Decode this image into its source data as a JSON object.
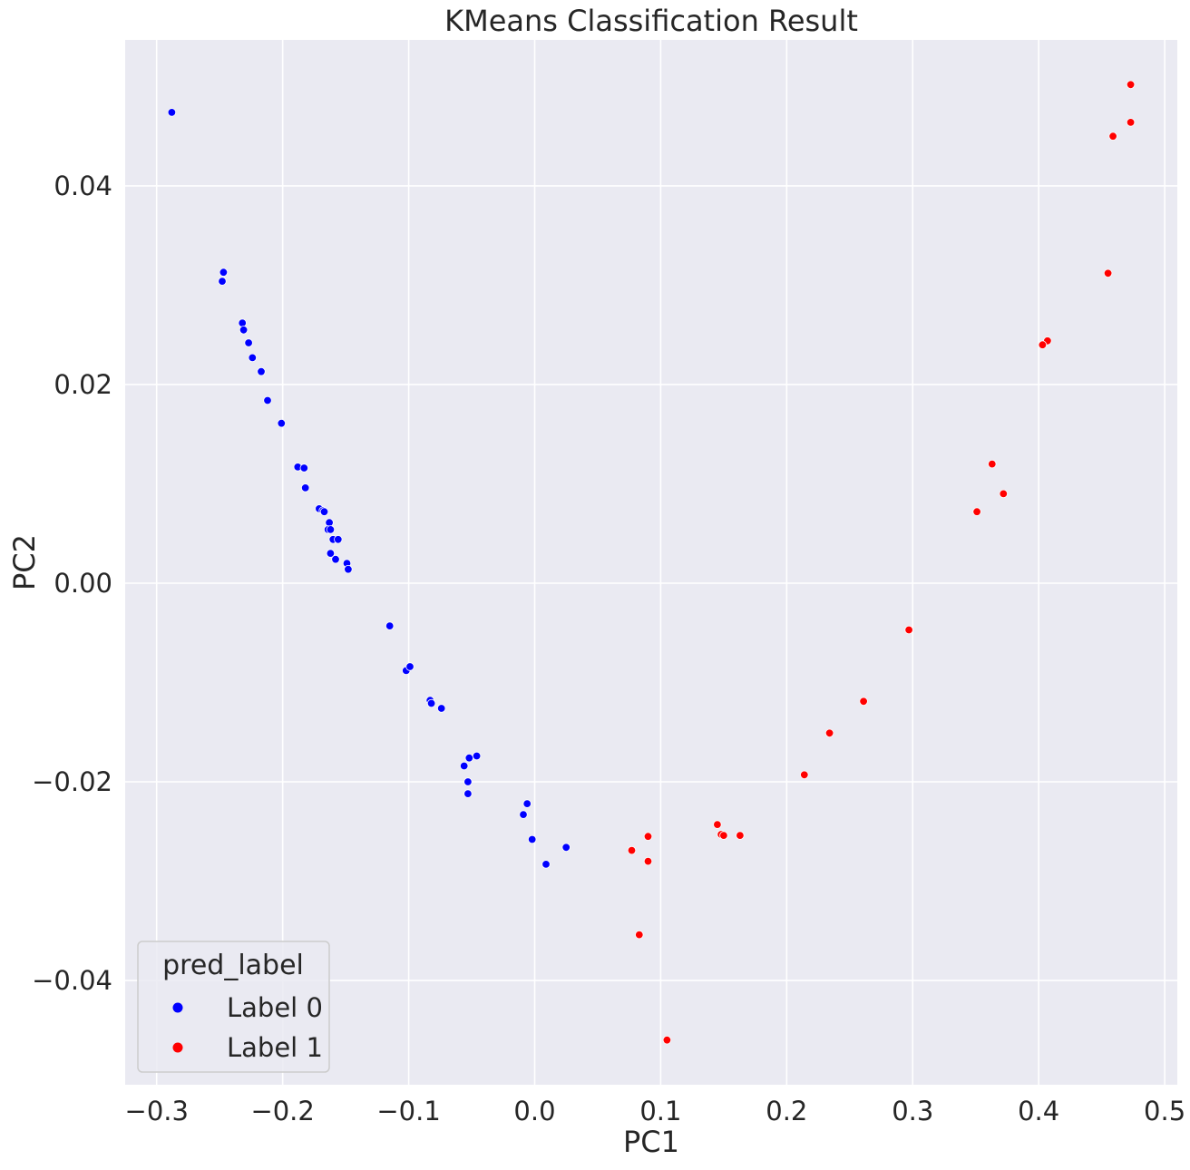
{
  "chart_data": {
    "type": "scatter",
    "title": "KMeans Classification Result",
    "xlabel": "PC1",
    "ylabel": "PC2",
    "xlim": [
      -0.325,
      0.51
    ],
    "ylim": [
      -0.0505,
      0.0547
    ],
    "x_ticks": [
      -0.3,
      -0.2,
      -0.1,
      0.0,
      0.1,
      0.2,
      0.3,
      0.4,
      0.5
    ],
    "x_tick_labels": [
      "−0.3",
      "−0.2",
      "−0.1",
      "0.0",
      "0.1",
      "0.2",
      "0.3",
      "0.4",
      "0.5"
    ],
    "y_ticks": [
      -0.04,
      -0.02,
      0.0,
      0.02,
      0.04
    ],
    "y_tick_labels": [
      "−0.04",
      "−0.02",
      "0.00",
      "0.02",
      "0.04"
    ],
    "grid": true,
    "background": "#eaeaf2",
    "grid_color": "#ffffff",
    "legend": {
      "title": "pred_label",
      "placement": "lower-left",
      "entries": [
        "Label 0",
        "Label 1"
      ]
    },
    "series": [
      {
        "name": "Label 0",
        "color": "#0000ff",
        "points": [
          [
            -0.288,
            0.0474
          ],
          [
            -0.247,
            0.0313
          ],
          [
            -0.248,
            0.0304
          ],
          [
            -0.232,
            0.0262
          ],
          [
            -0.231,
            0.0255
          ],
          [
            -0.227,
            0.0242
          ],
          [
            -0.224,
            0.0227
          ],
          [
            -0.217,
            0.0213
          ],
          [
            -0.212,
            0.0184
          ],
          [
            -0.201,
            0.0161
          ],
          [
            -0.188,
            0.0117
          ],
          [
            -0.183,
            0.0116
          ],
          [
            -0.182,
            0.0096
          ],
          [
            -0.171,
            0.0075
          ],
          [
            -0.168,
            0.0073
          ],
          [
            -0.167,
            0.0072
          ],
          [
            -0.163,
            0.0061
          ],
          [
            -0.164,
            0.0054
          ],
          [
            -0.162,
            0.0054
          ],
          [
            -0.16,
            0.0044
          ],
          [
            -0.156,
            0.0044
          ],
          [
            -0.162,
            0.003
          ],
          [
            -0.158,
            0.0024
          ],
          [
            -0.149,
            0.002
          ],
          [
            -0.148,
            0.0014
          ],
          [
            -0.115,
            -0.0043
          ],
          [
            -0.102,
            -0.0088
          ],
          [
            -0.099,
            -0.0084
          ],
          [
            -0.083,
            -0.0118
          ],
          [
            -0.082,
            -0.0121
          ],
          [
            -0.074,
            -0.0126
          ],
          [
            -0.052,
            -0.0176
          ],
          [
            -0.046,
            -0.0174
          ],
          [
            -0.056,
            -0.0184
          ],
          [
            -0.053,
            -0.02
          ],
          [
            -0.053,
            -0.0212
          ],
          [
            -0.006,
            -0.0222
          ],
          [
            -0.009,
            -0.0233
          ],
          [
            -0.002,
            -0.0258
          ],
          [
            0.025,
            -0.0266
          ],
          [
            0.009,
            -0.0283
          ]
        ]
      },
      {
        "name": "Label 1",
        "color": "#ff0000",
        "points": [
          [
            0.473,
            0.0502
          ],
          [
            0.473,
            0.0464
          ],
          [
            0.459,
            0.045
          ],
          [
            0.455,
            0.0312
          ],
          [
            0.407,
            0.0244
          ],
          [
            0.403,
            0.024
          ],
          [
            0.363,
            0.012
          ],
          [
            0.372,
            0.009
          ],
          [
            0.351,
            0.0072
          ],
          [
            0.297,
            -0.0047
          ],
          [
            0.261,
            -0.0119
          ],
          [
            0.234,
            -0.0151
          ],
          [
            0.214,
            -0.0193
          ],
          [
            0.145,
            -0.0243
          ],
          [
            0.148,
            -0.0253
          ],
          [
            0.15,
            -0.0254
          ],
          [
            0.163,
            -0.0254
          ],
          [
            0.09,
            -0.0255
          ],
          [
            0.077,
            -0.0269
          ],
          [
            0.09,
            -0.028
          ],
          [
            0.083,
            -0.0354
          ],
          [
            0.105,
            -0.046
          ]
        ]
      }
    ]
  }
}
